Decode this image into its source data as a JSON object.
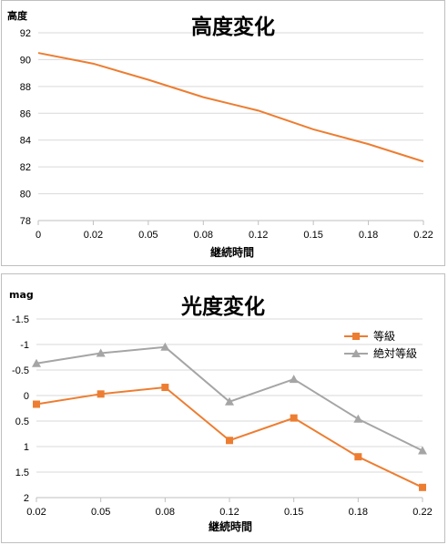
{
  "chart_data": [
    {
      "type": "line",
      "title": "高度変化",
      "ylabel": "高度",
      "xlabel": "継続時間",
      "categories": [
        "0",
        "0.02",
        "0.05",
        "0.08",
        "0.12",
        "0.15",
        "0.18",
        "0.22"
      ],
      "yticks": [
        "92",
        "90",
        "88",
        "86",
        "84",
        "82",
        "80",
        "78"
      ],
      "ylim": [
        78,
        92
      ],
      "grid": true,
      "legend": "none",
      "series": [
        {
          "color": "#ed7d31",
          "values": [
            90.5,
            89.7,
            88.5,
            87.2,
            86.2,
            84.8,
            83.7,
            82.4
          ]
        }
      ]
    },
    {
      "type": "line",
      "title": "光度変化",
      "ylabel": "mag",
      "xlabel": "継続時間",
      "categories": [
        "0.02",
        "0.05",
        "0.08",
        "0.12",
        "0.15",
        "0.18",
        "0.22"
      ],
      "yticks": [
        "-1.5",
        "-1",
        "-0.5",
        "0",
        "0.5",
        "1",
        "1.5",
        "2"
      ],
      "ylim": [
        -1.5,
        2
      ],
      "y_inverted": true,
      "grid": true,
      "legend": "top-right",
      "series": [
        {
          "name": "等級",
          "color": "#ed7d31",
          "marker": "square",
          "values": [
            0.17,
            -0.03,
            -0.16,
            0.88,
            0.44,
            1.2,
            1.8
          ]
        },
        {
          "name": "絶対等級",
          "color": "#a5a5a5",
          "marker": "triangle",
          "values": [
            -0.63,
            -0.83,
            -0.95,
            0.12,
            -0.32,
            0.46,
            1.08
          ]
        }
      ]
    }
  ]
}
